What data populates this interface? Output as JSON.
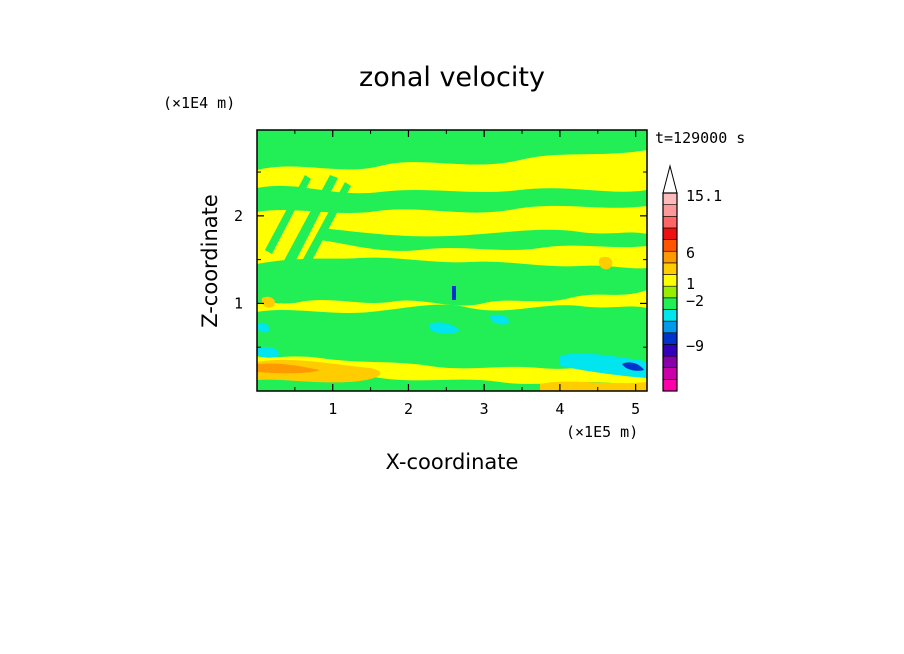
{
  "chart_data": {
    "type": "heatmap",
    "title": "zonal velocity",
    "xlabel": "X-coordinate",
    "ylabel": "Z-coordinate",
    "x_unit": "(×1E5 m)",
    "y_unit": "(×1E4 m)",
    "time_label": "t=129000 s",
    "x_ticks": [
      "1",
      "2",
      "3",
      "4",
      "5"
    ],
    "y_ticks": [
      "1",
      "2"
    ],
    "xlim": [
      0,
      5.15
    ],
    "ylim": [
      0,
      2.98
    ],
    "colorbar": {
      "tick_labels": [
        "15.1",
        "6",
        "1",
        "−2",
        "−9"
      ],
      "levels": [
        {
          "color": "#ff00aa"
        },
        {
          "color": "#cc00aa"
        },
        {
          "color": "#8800aa"
        },
        {
          "color": "#3300bb"
        },
        {
          "color": "#0033cc"
        },
        {
          "color": "#0099ee"
        },
        {
          "color": "#00e5ee"
        },
        {
          "color": "#22ee55"
        },
        {
          "color": "#99ee00"
        },
        {
          "color": "#ffff00"
        },
        {
          "color": "#ffcc00"
        },
        {
          "color": "#ff9900"
        },
        {
          "color": "#ff5500"
        },
        {
          "color": "#ee1111"
        },
        {
          "color": "#ff6666"
        },
        {
          "color": "#ff9999"
        },
        {
          "color": "#ffbbbb"
        }
      ]
    }
  }
}
